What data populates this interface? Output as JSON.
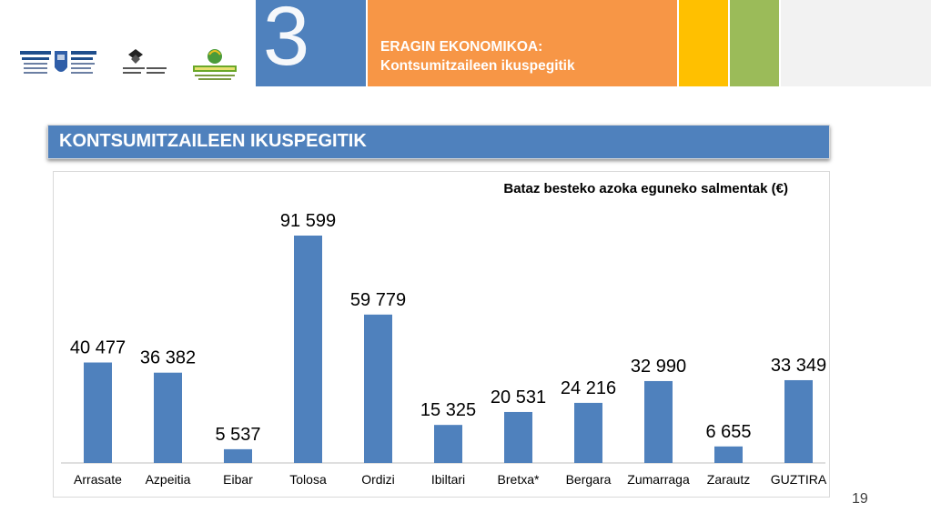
{
  "header": {
    "section_number": "3",
    "title_line1": "ERAGIN EKONOMIKOA:",
    "title_line2": "Kontsumitzaileen ikuspegitik"
  },
  "banner": {
    "title": "KONTSUMITZAILEEN IKUSPEGITIK"
  },
  "logos": [
    "gipuzkoa-foru-aldundia-logo",
    "upv-ehu-logo",
    "landaola-logo"
  ],
  "chart_data": {
    "type": "bar",
    "title": "Bataz besteko azoka eguneko salmentak (€)",
    "xlabel": "",
    "ylabel": "",
    "categories": [
      "Arrasate",
      "Azpeitia",
      "Eibar",
      "Tolosa",
      "Ordizi",
      "Ibiltari",
      "Bretxa*",
      "Bergara",
      "Zumarraga",
      "Zarautz",
      "GUZTIRA"
    ],
    "values": [
      40477,
      36382,
      5537,
      91599,
      59779,
      15325,
      20531,
      24216,
      32990,
      6655,
      33349
    ],
    "value_labels": [
      "40 477",
      "36 382",
      "5 537",
      "91 599",
      "59 779",
      "15 325",
      "20 531",
      "24 216",
      "32 990",
      "6 655",
      "33 349"
    ],
    "ylim": [
      0,
      91599
    ],
    "bar_color": "#4f81bd",
    "grid": false,
    "legend": false
  },
  "footer": {
    "page_number": "19"
  },
  "colors": {
    "blue": "#4f81bd",
    "orange": "#f79646",
    "yellow": "#ffc000",
    "green": "#9bbb59",
    "grey": "#f2f2f2"
  }
}
